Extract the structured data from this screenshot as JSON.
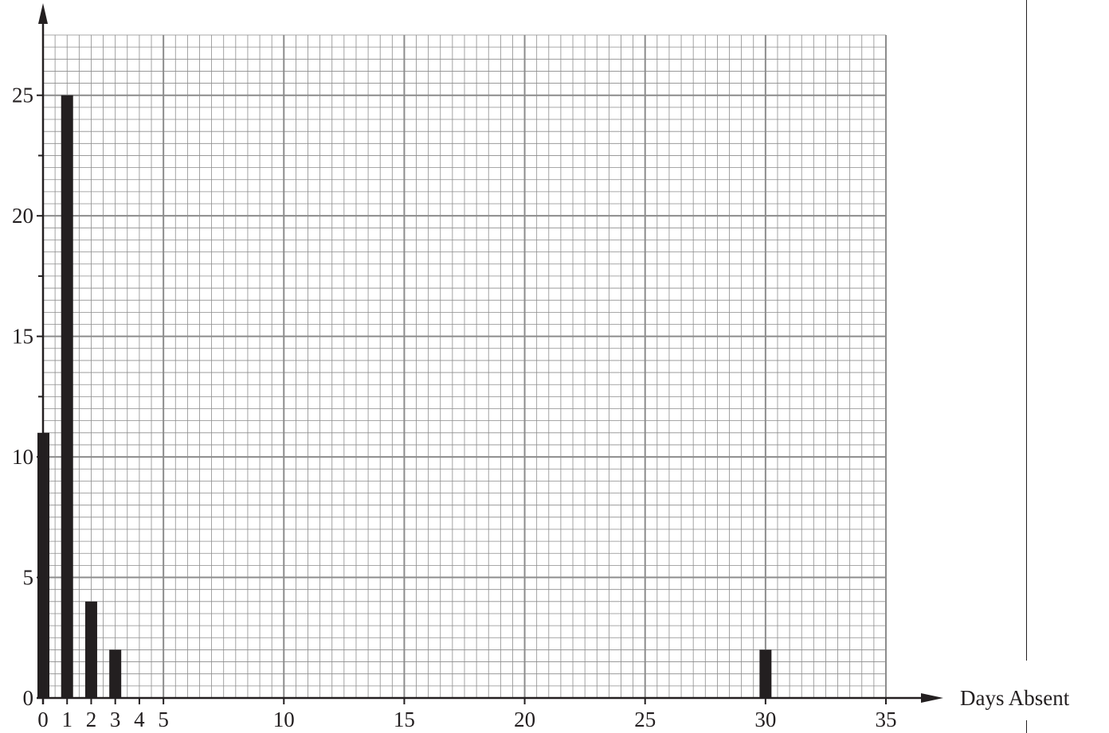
{
  "chart_data": {
    "type": "bar",
    "xlabel": "Days Absent",
    "ylabel": "",
    "x_ticks": [
      0,
      1,
      2,
      3,
      4,
      5,
      10,
      15,
      20,
      25,
      30,
      35
    ],
    "y_ticks": [
      0,
      5,
      10,
      15,
      20,
      25
    ],
    "xlim": [
      0,
      35
    ],
    "ylim": [
      0,
      27.5
    ],
    "grid": true,
    "bar_color": "#231f20",
    "grid_color": "#8c8c8c",
    "series": [
      {
        "x": [
          0,
          1,
          2,
          3,
          30
        ],
        "values": [
          11,
          25,
          4,
          2,
          2
        ]
      }
    ]
  }
}
